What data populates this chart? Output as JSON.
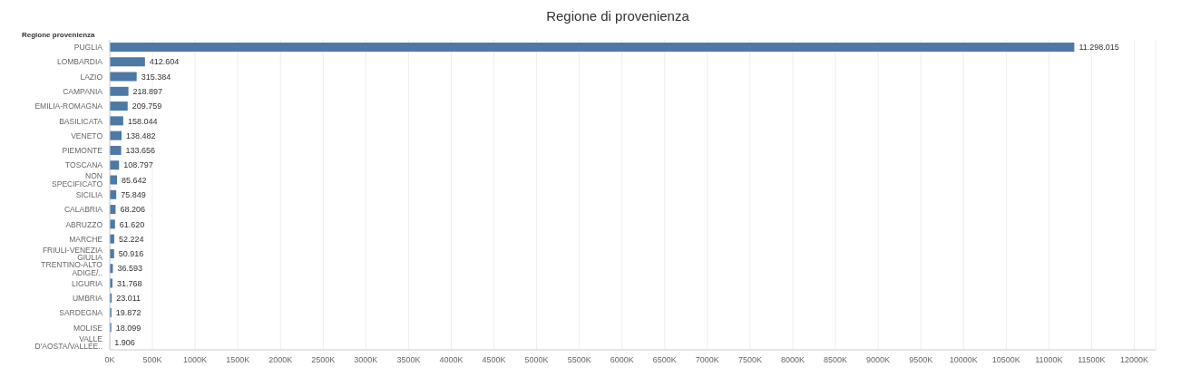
{
  "chart_data": {
    "type": "bar",
    "orientation": "horizontal",
    "title": "Regione di provenienza",
    "ylabel": "Regione provenienza",
    "categories": [
      "PUGLIA",
      "LOMBARDIA",
      "LAZIO",
      "CAMPANIA",
      "EMILIA-ROMAGNA",
      "BASILICATA",
      "VENETO",
      "PIEMONTE",
      "TOSCANA",
      "NON SPECIFICATO",
      "SICILIA",
      "CALABRIA",
      "ABRUZZO",
      "MARCHE",
      "FRIULI-VENEZIA GIULIA",
      "TRENTINO-ALTO ADIGE/..",
      "LIGURIA",
      "UMBRIA",
      "SARDEGNA",
      "MOLISE",
      "VALLE D'AOSTA/VALLÉE.."
    ],
    "values": [
      11298015,
      412604,
      315384,
      218897,
      209759,
      158044,
      138482,
      133656,
      108797,
      85642,
      75849,
      68206,
      61620,
      52224,
      50916,
      36593,
      31768,
      23011,
      19872,
      18099,
      1906
    ],
    "value_labels": [
      "11.298.015",
      "412.604",
      "315.384",
      "218.897",
      "209.759",
      "158.044",
      "138.482",
      "133.656",
      "108.797",
      "85.642",
      "75.849",
      "68.206",
      "61.620",
      "52.224",
      "50.916",
      "36.593",
      "31.768",
      "23.011",
      "19.872",
      "18.099",
      "1.906"
    ],
    "color": "#4e79a7",
    "grid": "x",
    "legend": false,
    "xlim": [
      0,
      12250000
    ],
    "xticks": [
      {
        "value": 0,
        "label": "0K"
      },
      {
        "value": 500000,
        "label": "500K"
      },
      {
        "value": 1000000,
        "label": "1000K"
      },
      {
        "value": 1500000,
        "label": "1500K"
      },
      {
        "value": 2000000,
        "label": "2000K"
      },
      {
        "value": 2500000,
        "label": "2500K"
      },
      {
        "value": 3000000,
        "label": "3000K"
      },
      {
        "value": 3500000,
        "label": "3500K"
      },
      {
        "value": 4000000,
        "label": "4000K"
      },
      {
        "value": 4500000,
        "label": "4500K"
      },
      {
        "value": 5000000,
        "label": "5000K"
      },
      {
        "value": 5500000,
        "label": "5500K"
      },
      {
        "value": 6000000,
        "label": "6000K"
      },
      {
        "value": 6500000,
        "label": "6500K"
      },
      {
        "value": 7000000,
        "label": "7000K"
      },
      {
        "value": 7500000,
        "label": "7500K"
      },
      {
        "value": 8000000,
        "label": "8000K"
      },
      {
        "value": 8500000,
        "label": "8500K"
      },
      {
        "value": 9000000,
        "label": "9000K"
      },
      {
        "value": 9500000,
        "label": "9500K"
      },
      {
        "value": 10000000,
        "label": "10000K"
      },
      {
        "value": 10500000,
        "label": "10500K"
      },
      {
        "value": 11000000,
        "label": "11000K"
      },
      {
        "value": 11500000,
        "label": "11500K"
      },
      {
        "value": 12000000,
        "label": "12000K"
      }
    ]
  }
}
